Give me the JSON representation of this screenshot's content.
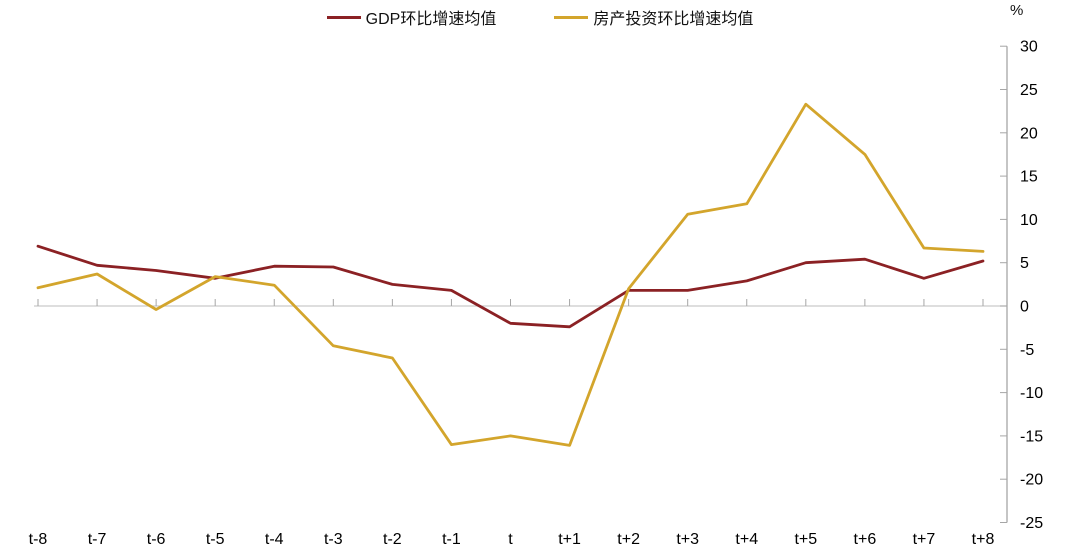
{
  "chart_data": {
    "type": "line",
    "unit_label": "%",
    "categories": [
      "t-8",
      "t-7",
      "t-6",
      "t-5",
      "t-4",
      "t-3",
      "t-2",
      "t-1",
      "t",
      "t+1",
      "t+2",
      "t+3",
      "t+4",
      "t+5",
      "t+6",
      "t+7",
      "t+8"
    ],
    "series": [
      {
        "name": "GDP环比增速均值",
        "color": "#8B2124",
        "values": [
          6.9,
          4.7,
          4.1,
          3.2,
          4.6,
          4.5,
          2.5,
          1.8,
          -2.0,
          -2.4,
          1.8,
          1.8,
          2.9,
          5.0,
          5.4,
          3.2,
          5.2
        ]
      },
      {
        "name": "房产投资环比增速均值",
        "color": "#D3A52C",
        "values": [
          2.1,
          3.7,
          -0.4,
          3.4,
          2.4,
          -4.6,
          -6.0,
          -16.0,
          -15.0,
          -16.1,
          2.0,
          10.6,
          11.8,
          23.3,
          17.5,
          6.7,
          6.3
        ]
      }
    ],
    "ylim": [
      -25,
      30
    ],
    "ytick_step": 5,
    "axis_side": "right",
    "legend_position": "top",
    "grid": "zero-line-only",
    "axis_color": "#A6A6A6",
    "zero_line_color": "#C9C9C9",
    "text_color": "#000000"
  }
}
